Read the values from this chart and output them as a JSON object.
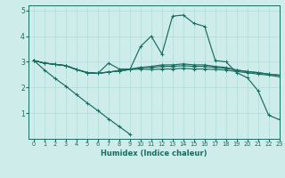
{
  "xlabel": "Humidex (Indice chaleur)",
  "xlim": [
    -0.5,
    23
  ],
  "ylim": [
    0,
    5.2
  ],
  "bg_color": "#ceecea",
  "line_color": "#1a6b60",
  "grid_color": "#b0dbd8",
  "lines": [
    [
      3.05,
      2.95,
      2.9,
      2.85,
      2.7,
      2.58,
      2.55,
      2.6,
      2.65,
      2.7,
      3.6,
      4.0,
      3.3,
      4.78,
      4.82,
      4.5,
      4.38,
      3.05,
      3.0,
      2.58,
      2.38,
      1.88,
      0.92,
      0.75
    ],
    [
      3.05,
      2.95,
      2.9,
      2.85,
      2.7,
      2.58,
      2.55,
      2.6,
      2.65,
      2.7,
      2.72,
      2.7,
      2.72,
      2.72,
      2.75,
      2.72,
      2.72,
      2.7,
      2.68,
      2.62,
      2.58,
      2.52,
      2.48,
      2.42
    ],
    [
      3.05,
      2.95,
      2.9,
      2.85,
      2.7,
      2.58,
      2.55,
      2.6,
      2.65,
      2.7,
      2.78,
      2.78,
      2.82,
      2.82,
      2.85,
      2.82,
      2.82,
      2.78,
      2.75,
      2.68,
      2.62,
      2.58,
      2.52,
      2.48
    ],
    [
      3.05,
      2.95,
      2.9,
      2.85,
      2.7,
      2.58,
      2.55,
      2.95,
      2.72,
      2.72,
      2.78,
      2.82,
      2.88,
      2.88,
      2.92,
      2.88,
      2.88,
      2.82,
      2.78,
      2.68,
      2.62,
      2.58,
      2.52,
      2.48
    ],
    [
      3.05,
      2.68,
      2.35,
      2.05,
      1.72,
      1.4,
      1.1,
      0.78,
      0.48,
      0.18,
      null,
      null,
      null,
      null,
      null,
      null,
      null,
      null,
      null,
      null,
      null,
      null,
      null,
      null
    ]
  ],
  "xticks": [
    0,
    1,
    2,
    3,
    4,
    5,
    6,
    7,
    8,
    9,
    10,
    11,
    12,
    13,
    14,
    15,
    16,
    17,
    18,
    19,
    20,
    21,
    22,
    23
  ],
  "yticks": [
    1,
    2,
    3,
    4,
    5
  ]
}
